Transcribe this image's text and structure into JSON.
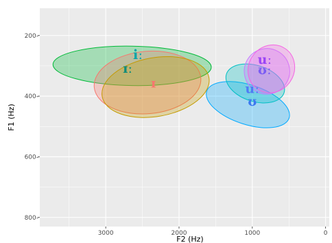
{
  "chart_data": {
    "type": "scatter",
    "title": "",
    "xlabel": "F2 (Hz)",
    "ylabel": "F1 (Hz)",
    "x_reversed": true,
    "y_reversed": true,
    "xlim": [
      3900,
      -50
    ],
    "ylim": [
      110,
      830
    ],
    "x_ticks": [
      3000,
      2000,
      1000,
      0
    ],
    "x_tick_labels": [
      "3000",
      "2000",
      "1000",
      "0"
    ],
    "y_ticks": [
      200,
      400,
      600,
      800
    ],
    "y_tick_labels": [
      "200-",
      "400-",
      "600-",
      "800-"
    ],
    "grid": true,
    "legend": "none",
    "ellipses": [
      {
        "label": "iː",
        "color": "#00BA38",
        "center_f2": 2640,
        "center_f1": 300,
        "radius_f2": 1080,
        "radius_f1": 65,
        "angle_deg": 1
      },
      {
        "label": "ɪː",
        "color": "#F8766D",
        "center_f2": 2430,
        "center_f1": 355,
        "radius_f2": 730,
        "radius_f1": 103,
        "angle_deg": -5
      },
      {
        "label": "ɪ",
        "color": "#C49A00",
        "center_f2": 2320,
        "center_f1": 370,
        "radius_f2": 740,
        "radius_f1": 97,
        "angle_deg": -10
      },
      {
        "label": "ʊ",
        "color": "#00A9FF",
        "center_f2": 1060,
        "center_f1": 428,
        "radius_f2": 270,
        "radius_f1": 143,
        "angle_deg": -72
      },
      {
        "label": "uː",
        "color": "#00BFC4",
        "center_f2": 960,
        "center_f1": 358,
        "radius_f2": 245,
        "radius_f1": 100,
        "angle_deg": -72
      },
      {
        "label": "ʊː",
        "color": "#C77CFF",
        "center_f2": 800,
        "center_f1": 318,
        "radius_f2": 310,
        "radius_f1": 75,
        "angle_deg": -60
      },
      {
        "label": "uː",
        "color": "#F564E3",
        "center_f2": 740,
        "center_f1": 310,
        "radius_f2": 335,
        "radius_f1": 75,
        "angle_deg": -55
      }
    ],
    "labels": [
      {
        "text": "iː",
        "color": "#00A5A8",
        "f2": 2560,
        "f1": 266
      },
      {
        "text": "ɪː",
        "color": "#0E8C7A",
        "f2": 2700,
        "f1": 312
      },
      {
        "text": "ɪ",
        "color": "#F8766D",
        "f2": 2350,
        "f1": 360
      },
      {
        "text": "uː",
        "color": "#4F7CF5",
        "f2": 1000,
        "f1": 378
      },
      {
        "text": "ʊ",
        "color": "#3C78F0",
        "f2": 1000,
        "f1": 420
      },
      {
        "text": "uː",
        "color": "#9B45F5",
        "f2": 830,
        "f1": 282
      },
      {
        "text": "ʊː",
        "color": "#7B5CF3",
        "f2": 830,
        "f1": 316
      }
    ]
  }
}
